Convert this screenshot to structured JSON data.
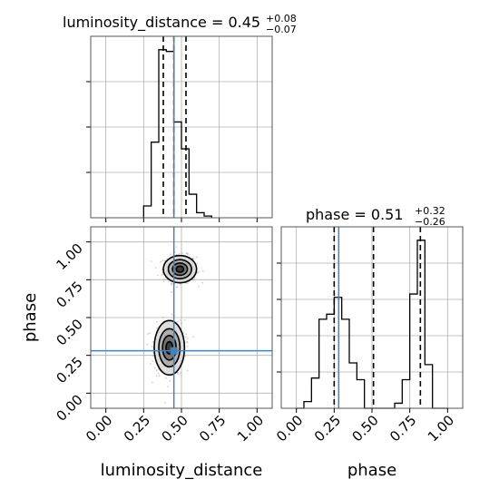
{
  "chart_data": [
    {
      "type": "histogram",
      "panel": "luminosity_distance marginal",
      "title": {
        "main": "luminosity_distance = 0.45",
        "sup": "+0.08",
        "sub": "−0.07"
      },
      "xlim": [
        -0.1,
        1.1
      ],
      "bins": [
        0.25,
        0.3,
        0.35,
        0.4,
        0.45,
        0.5,
        0.55,
        0.6,
        0.65,
        0.7
      ],
      "counts": [
        0.07,
        0.45,
        1.0,
        0.99,
        0.57,
        0.41,
        0.14,
        0.03,
        0.01
      ],
      "quantiles": [
        0.38,
        0.45,
        0.53
      ],
      "truth": 0.45,
      "grid": true
    },
    {
      "type": "histogram",
      "panel": "phase marginal",
      "title": {
        "main": "phase = 0.51",
        "sup": "+0.32",
        "sub": "−0.26"
      },
      "xlim": [
        -0.1,
        1.1
      ],
      "xticks": [
        "0.00",
        "0.25",
        "0.50",
        "0.75",
        "1.00"
      ],
      "xlabel": "phase",
      "bins": [
        0.0,
        0.05,
        0.1,
        0.15,
        0.2,
        0.25,
        0.3,
        0.35,
        0.4,
        0.45,
        0.5,
        0.55,
        0.6,
        0.65,
        0.7,
        0.75,
        0.8,
        0.85,
        0.9,
        0.95,
        1.0
      ],
      "counts": [
        0.0,
        0.04,
        0.18,
        0.53,
        0.56,
        0.66,
        0.53,
        0.27,
        0.17,
        0.0,
        0.0,
        0.0,
        0.0,
        0.03,
        0.17,
        0.68,
        1.0,
        0.26,
        0.0,
        0.0
      ],
      "quantiles": [
        0.25,
        0.51,
        0.82
      ],
      "truth": 0.28,
      "grid": true
    },
    {
      "type": "scatter",
      "panel": "2D posterior phase vs luminosity_distance",
      "xlabel": "luminosity_distance",
      "ylabel": "phase",
      "xlim": [
        -0.1,
        1.1
      ],
      "ylim": [
        -0.1,
        1.1
      ],
      "xticks": [
        "0.00",
        "0.25",
        "0.50",
        "0.75",
        "1.00"
      ],
      "yticks": [
        "0.00",
        "0.25",
        "0.50",
        "0.75",
        "1.00"
      ],
      "modes": [
        {
          "x": 0.49,
          "y": 0.82,
          "sx": 0.055,
          "sy": 0.045
        },
        {
          "x": 0.42,
          "y": 0.3,
          "sx": 0.05,
          "sy": 0.09
        }
      ],
      "truth": {
        "x": 0.45,
        "y": 0.28
      },
      "grid": true
    }
  ],
  "colors": {
    "truth": "#4682b4",
    "hist": "#000000",
    "grid": "#b0b0b0"
  }
}
